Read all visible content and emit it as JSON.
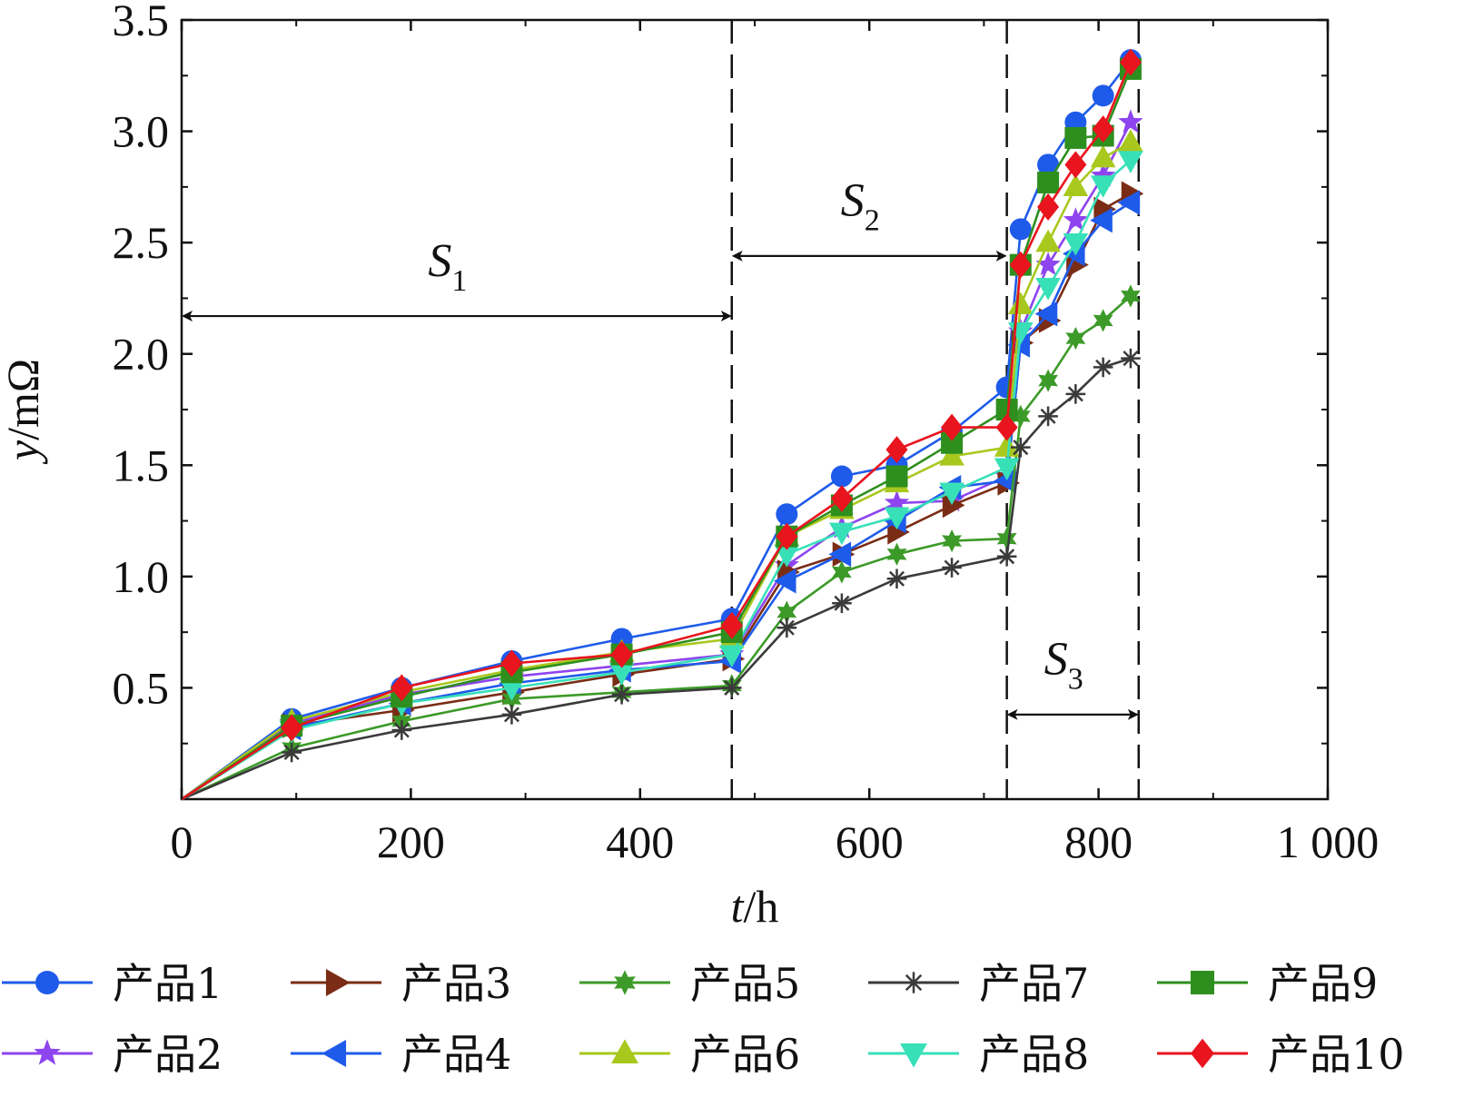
{
  "chart_data": {
    "type": "line",
    "title": "",
    "xlabel": {
      "var": "t",
      "unit": "/h"
    },
    "ylabel": {
      "var": "y",
      "unit": "/mΩ"
    },
    "xlim": [
      0,
      1000
    ],
    "ylim": [
      0,
      3.5
    ],
    "x_ticks": [
      0,
      200,
      400,
      600,
      800,
      1000
    ],
    "x_tick_labels": [
      "0",
      "200",
      "400",
      "600",
      "800",
      "1 000"
    ],
    "y_ticks": [
      0.5,
      1.0,
      1.5,
      2.0,
      2.5,
      3.0,
      3.5
    ],
    "y_tick_labels": [
      "0.5",
      "1.0",
      "1.5",
      "2.0",
      "2.5",
      "3.0",
      "3.5"
    ],
    "x": [
      0,
      96,
      192,
      288,
      384,
      480,
      528,
      576,
      624,
      672,
      720,
      732,
      756,
      780,
      804,
      828
    ],
    "stage_boundaries": [
      480,
      720,
      835
    ],
    "regions": [
      {
        "name": "S",
        "sub": "1",
        "from": 0,
        "to": 480,
        "arrow_y": 2.17,
        "label_y": 2.35
      },
      {
        "name": "S",
        "sub": "2",
        "from": 480,
        "to": 720,
        "arrow_y": 2.44,
        "label_y": 2.62
      },
      {
        "name": "S",
        "sub": "3",
        "from": 720,
        "to": 835,
        "arrow_y": 0.38,
        "label_y": 0.56
      }
    ],
    "legend_position": "bottom",
    "series": [
      {
        "name": "产品1",
        "color": "#1f5bea",
        "marker": "circle",
        "values": [
          0,
          0.36,
          0.5,
          0.62,
          0.72,
          0.81,
          1.28,
          1.45,
          1.5,
          1.65,
          1.85,
          2.56,
          2.85,
          3.04,
          3.16,
          3.32
        ]
      },
      {
        "name": "产品2",
        "color": "#8e44ee",
        "marker": "star",
        "values": [
          0,
          0.34,
          0.47,
          0.55,
          0.6,
          0.65,
          1.05,
          1.22,
          1.33,
          1.34,
          1.45,
          2.1,
          2.4,
          2.6,
          2.8,
          3.04
        ]
      },
      {
        "name": "产品3",
        "color": "#7a2c15",
        "marker": "triangle-right",
        "values": [
          0,
          0.33,
          0.4,
          0.48,
          0.56,
          0.63,
          1.02,
          1.1,
          1.2,
          1.32,
          1.42,
          2.05,
          2.15,
          2.4,
          2.65,
          2.72
        ]
      },
      {
        "name": "产品4",
        "color": "#1f5bea",
        "marker": "triangle-left",
        "values": [
          0,
          0.32,
          0.43,
          0.52,
          0.58,
          0.62,
          0.98,
          1.1,
          1.25,
          1.4,
          1.43,
          2.04,
          2.18,
          2.45,
          2.6,
          2.68
        ]
      },
      {
        "name": "产品5",
        "color": "#3c9a28",
        "marker": "star6",
        "values": [
          0,
          0.23,
          0.35,
          0.45,
          0.48,
          0.51,
          0.84,
          1.02,
          1.1,
          1.16,
          1.17,
          1.72,
          1.88,
          2.07,
          2.15,
          2.26
        ]
      },
      {
        "name": "产品6",
        "color": "#a8c81e",
        "marker": "triangle-up",
        "values": [
          0,
          0.35,
          0.48,
          0.58,
          0.66,
          0.72,
          1.18,
          1.3,
          1.42,
          1.54,
          1.58,
          2.22,
          2.5,
          2.75,
          2.88,
          2.95
        ]
      },
      {
        "name": "产品7",
        "color": "#3a3a3a",
        "marker": "asterisk",
        "values": [
          0,
          0.21,
          0.31,
          0.38,
          0.47,
          0.5,
          0.77,
          0.88,
          0.99,
          1.04,
          1.09,
          1.58,
          1.72,
          1.82,
          1.94,
          1.98
        ]
      },
      {
        "name": "产品8",
        "color": "#38e0b8",
        "marker": "triangle-down",
        "values": [
          0,
          0.31,
          0.43,
          0.5,
          0.57,
          0.65,
          1.1,
          1.2,
          1.27,
          1.38,
          1.49,
          2.1,
          2.3,
          2.5,
          2.76,
          2.87
        ]
      },
      {
        "name": "产品9",
        "color": "#2e8f1e",
        "marker": "square",
        "values": [
          0,
          0.33,
          0.46,
          0.57,
          0.65,
          0.75,
          1.18,
          1.32,
          1.45,
          1.6,
          1.75,
          2.4,
          2.77,
          2.97,
          2.98,
          3.28
        ]
      },
      {
        "name": "产品10",
        "color": "#e8141e",
        "marker": "diamond",
        "values": [
          0,
          0.32,
          0.5,
          0.61,
          0.65,
          0.78,
          1.18,
          1.35,
          1.57,
          1.67,
          1.67,
          2.4,
          2.66,
          2.85,
          3.01,
          3.31
        ]
      }
    ]
  }
}
